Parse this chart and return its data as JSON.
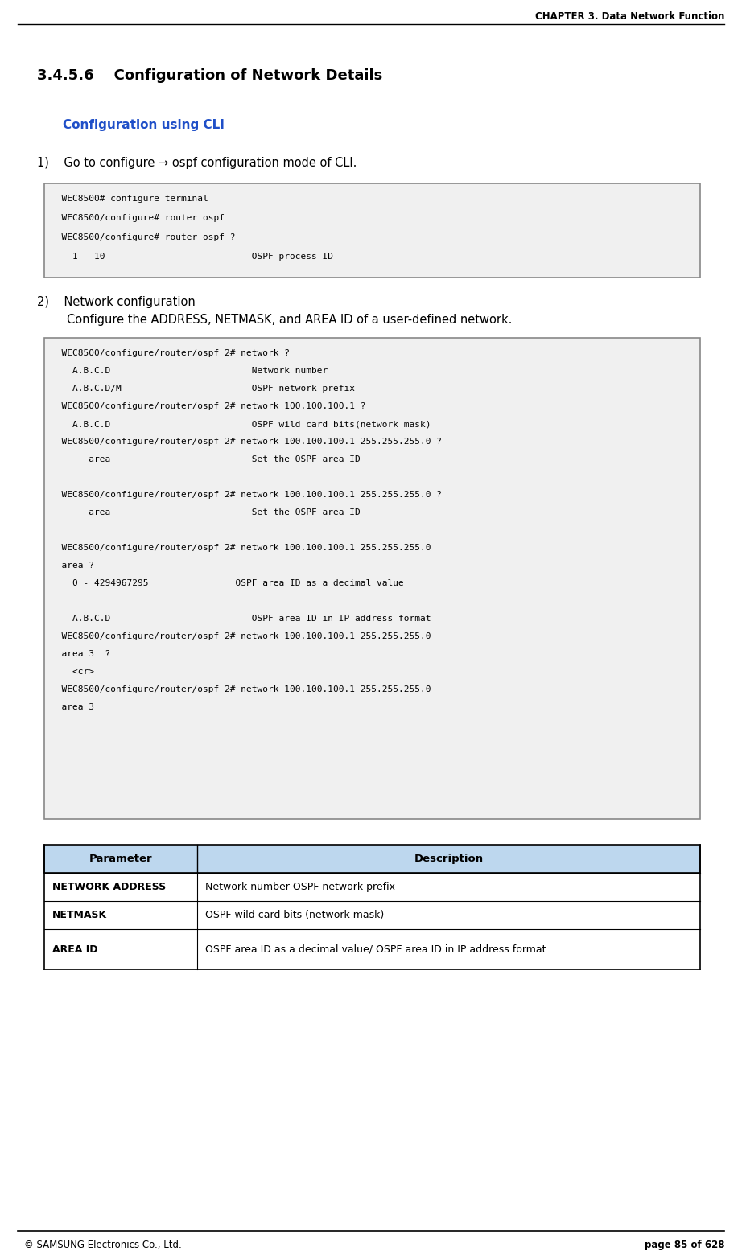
{
  "page_width": 9.22,
  "page_height": 15.65,
  "dpi": 100,
  "bg_color": "#ffffff",
  "header_text": "CHAPTER 3. Data Network Function",
  "footer_left": "© SAMSUNG Electronics Co., Ltd.",
  "footer_right": "page 85 of 628",
  "section_number": "3.4.5.6",
  "section_title": "    Configuration of Network Details",
  "subsection_title": "Configuration using CLI",
  "subsection_color": "#1f4fc8",
  "step1_text": "1)    Go to configure → ospf configuration mode of CLI.",
  "step2_line1": "2)    Network configuration",
  "step2_line2": "        Configure the ADDRESS, NETMASK, and AREA ID of a user-defined network.",
  "code_box1_lines": [
    "  WEC8500# configure terminal",
    "  WEC8500/configure# router ospf",
    "  WEC8500/configure# router ospf ?",
    "    1 - 10                           OSPF process ID"
  ],
  "code_box2_lines": [
    "  WEC8500/configure/router/ospf 2# network ?",
    "    A.B.C.D                          Network number",
    "    A.B.C.D/M                        OSPF network prefix",
    "  WEC8500/configure/router/ospf 2# network 100.100.100.1 ?",
    "    A.B.C.D                          OSPF wild card bits(network mask)",
    "  WEC8500/configure/router/ospf 2# network 100.100.100.1 255.255.255.0 ?",
    "       area                          Set the OSPF area ID",
    "",
    "  WEC8500/configure/router/ospf 2# network 100.100.100.1 255.255.255.0 ?",
    "       area                          Set the OSPF area ID",
    "",
    "  WEC8500/configure/router/ospf 2# network 100.100.100.1 255.255.255.0",
    "  area ?",
    "    0 - 4294967295                OSPF area ID as a decimal value",
    "",
    "    A.B.C.D                          OSPF area ID in IP address format",
    "  WEC8500/configure/router/ospf 2# network 100.100.100.1 255.255.255.0",
    "  area 3  ?",
    "    <cr>",
    "  WEC8500/configure/router/ospf 2# network 100.100.100.1 255.255.255.0",
    "  area 3"
  ],
  "table_header_bg": "#bdd7ee",
  "table_header_color": "#000000",
  "table_header_cols": [
    "Parameter",
    "Description"
  ],
  "table_rows": [
    [
      "NETWORK ADDRESS",
      "Network number OSPF network prefix"
    ],
    [
      "NETMASK",
      "OSPF wild card bits (network mask)"
    ],
    [
      "AREA ID",
      "OSPF area ID as a decimal value/ OSPF area ID in IP address format"
    ]
  ],
  "table_border_color": "#000000",
  "table_divider_color": "#000000",
  "code_bg": "#f0f0f0",
  "code_border": "#888888",
  "code_font_size": 8.0,
  "body_font_size": 10.5,
  "header_font_size": 9,
  "section_title_font_size": 13,
  "subsection_font_size": 11
}
